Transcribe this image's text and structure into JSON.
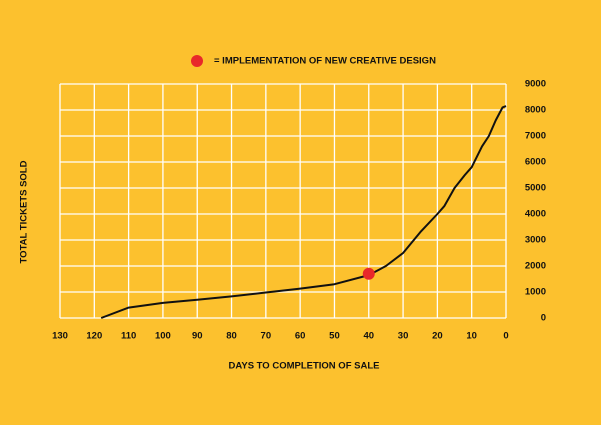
{
  "chart_data": {
    "type": "line",
    "x": [
      118,
      110,
      100,
      90,
      80,
      70,
      60,
      50,
      40,
      35,
      30,
      25,
      20,
      18,
      15,
      12,
      10,
      7,
      5,
      3,
      1,
      0
    ],
    "series": [
      {
        "color": "#111111",
        "values": [
          0,
          400,
          580,
          700,
          830,
          980,
          1130,
          1300,
          1650,
          2000,
          2500,
          3300,
          4000,
          4300,
          5000,
          5500,
          5800,
          6600,
          7000,
          7600,
          8100,
          8150
        ]
      }
    ],
    "highlight": {
      "x": 40,
      "y": 1700,
      "color": "#e8282a",
      "label": "= IMPLEMENTATION OF NEW CREATIVE DESIGN"
    },
    "xlabel": "DAYS TO COMPLETION OF SALE",
    "ylabel": "TOTAL TICKETS SOLD",
    "xlim": [
      130,
      0
    ],
    "xticks": [
      130,
      120,
      110,
      100,
      90,
      80,
      70,
      60,
      50,
      40,
      30,
      20,
      10,
      0
    ],
    "ylim": [
      0,
      9000
    ],
    "yticks": [
      0,
      1000,
      2000,
      3000,
      4000,
      5000,
      6000,
      7000,
      8000,
      9000
    ],
    "grid": true
  }
}
